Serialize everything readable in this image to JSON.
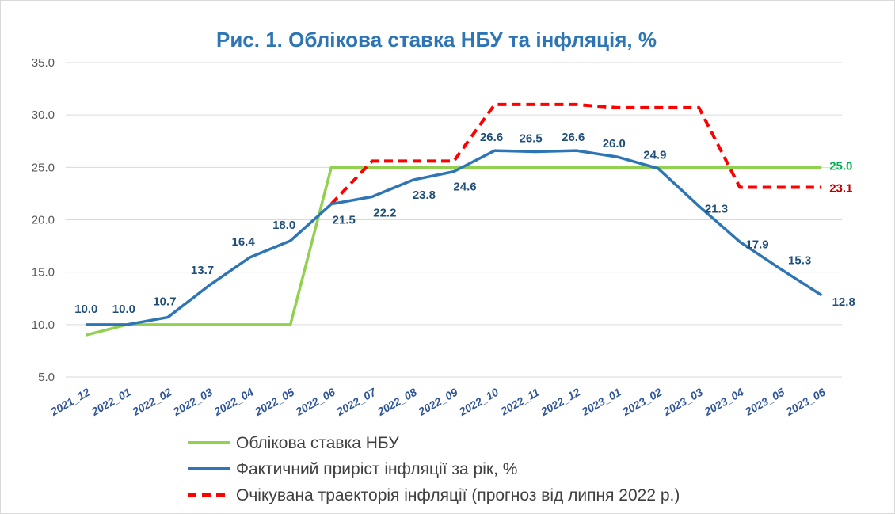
{
  "chart_data": {
    "type": "line",
    "title": "Рис. 1. Облікова ставка НБУ та інфляція, %",
    "categories": [
      "2021_12",
      "2022_01",
      "2022_02",
      "2022_03",
      "2022_04",
      "2022_05",
      "2022_06",
      "2022_07",
      "2022_08",
      "2022_09",
      "2022_10",
      "2022_11",
      "2022_12",
      "2023_01",
      "2023_02",
      "2023_03",
      "2023_04",
      "2023_05",
      "2023_06"
    ],
    "ylim": [
      5.0,
      35.0
    ],
    "yticks": [
      "5.0",
      "10.0",
      "15.0",
      "20.0",
      "25.0",
      "30.0",
      "35.0"
    ],
    "grid": "horizontal",
    "legend_position": "bottom",
    "series": [
      {
        "name": "Облікова ставка НБУ",
        "color": "#92d050",
        "style": "solid",
        "values": [
          9.0,
          10.0,
          10.0,
          10.0,
          10.0,
          10.0,
          25.0,
          25.0,
          25.0,
          25.0,
          25.0,
          25.0,
          25.0,
          25.0,
          25.0,
          25.0,
          25.0,
          25.0,
          25.0
        ],
        "end_label": "25.0",
        "label_color": "#00b050"
      },
      {
        "name": "Фактичний приріст інфляції за рік, %",
        "color": "#2e75b6",
        "style": "solid",
        "values": [
          10.0,
          10.0,
          10.7,
          13.7,
          16.4,
          18.0,
          21.5,
          22.2,
          23.8,
          24.6,
          26.6,
          26.5,
          26.6,
          26.0,
          24.9,
          21.3,
          17.9,
          15.3,
          12.8
        ],
        "data_labels": [
          "10.0",
          "10.0",
          "10.7",
          "13.7",
          "16.4",
          "18.0",
          "21.5",
          "22.2",
          "23.8",
          "24.6",
          "26.6",
          "26.5",
          "26.6",
          "26.0",
          "24.9",
          "21.3",
          "17.9",
          "15.3",
          "12.8"
        ],
        "label_color": "#1f4e79"
      },
      {
        "name": "Очікувана траекторія інфляції (прогноз від липня 2022 р.)",
        "color": "#ff0000",
        "style": "dashed",
        "values": [
          null,
          null,
          null,
          null,
          null,
          null,
          21.5,
          25.6,
          25.6,
          25.6,
          31.0,
          31.0,
          31.0,
          30.7,
          30.7,
          30.7,
          23.1,
          23.1,
          23.1
        ],
        "end_label": "23.1",
        "label_color": "#c00000"
      }
    ]
  }
}
